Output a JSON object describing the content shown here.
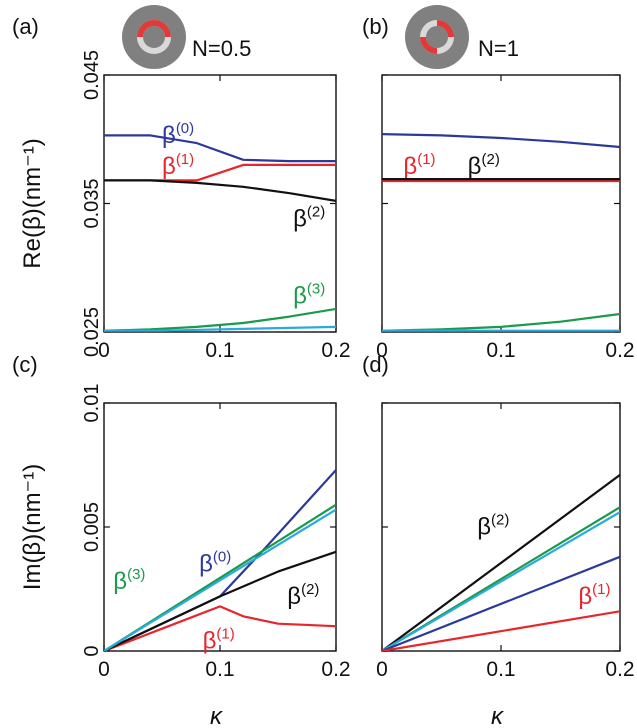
{
  "chart_data": [
    {
      "panel": "(a)",
      "type": "line",
      "title": "N=0.5",
      "ylabel": "Re(β)(nm⁻¹)",
      "xlabel": "",
      "xlim": [
        0,
        0.2
      ],
      "ylim": [
        0.025,
        0.045
      ],
      "xticks": [
        "0",
        "0.1",
        "0.2"
      ],
      "yticks": [
        "0.025",
        "0.035",
        "0.045"
      ],
      "inset_ring": {
        "outer": "#808080",
        "track": "#d9d9d9",
        "highlight": "#e03a3a",
        "arc": "top"
      },
      "series": [
        {
          "name": "β(0)",
          "label_main": "β",
          "label_sup": "(0)",
          "color": "#2b3a9a",
          "x": [
            0,
            0.04,
            0.08,
            0.12,
            0.16,
            0.2
          ],
          "y": [
            0.0403,
            0.0403,
            0.0397,
            0.0384,
            0.0383,
            0.0383
          ],
          "label_at": [
            0.05,
            0.0397
          ]
        },
        {
          "name": "β(1)",
          "label_main": "β",
          "label_sup": "(1)",
          "color": "#e8252a",
          "x": [
            0,
            0.04,
            0.08,
            0.12,
            0.16,
            0.2
          ],
          "y": [
            0.0368,
            0.0368,
            0.0368,
            0.038,
            0.038,
            0.038
          ],
          "label_at": [
            0.05,
            0.0373
          ]
        },
        {
          "name": "β(2)",
          "label_main": "β",
          "label_sup": "(2)",
          "color": "#111111",
          "x": [
            0,
            0.04,
            0.08,
            0.12,
            0.16,
            0.2
          ],
          "y": [
            0.0368,
            0.0368,
            0.0366,
            0.0363,
            0.0358,
            0.0352
          ],
          "label_at": [
            0.163,
            0.0332
          ]
        },
        {
          "name": "β(3)",
          "label_main": "β",
          "label_sup": "(3)",
          "color": "#1a9a4a",
          "x": [
            0,
            0.04,
            0.08,
            0.12,
            0.16,
            0.2
          ],
          "y": [
            0.0251,
            0.0252,
            0.0254,
            0.0257,
            0.0262,
            0.0268
          ],
          "label_at": [
            0.163,
            0.0272
          ]
        },
        {
          "name": "",
          "color": "#2aaae0",
          "x": [
            0,
            0.05,
            0.1,
            0.15,
            0.2
          ],
          "y": [
            0.0251,
            0.0251,
            0.0252,
            0.0253,
            0.0254
          ]
        }
      ]
    },
    {
      "panel": "(b)",
      "type": "line",
      "title": "N=1",
      "ylabel": "",
      "xlabel": "",
      "xlim": [
        0,
        0.2
      ],
      "ylim": [
        0.025,
        0.045
      ],
      "xticks": [
        "0",
        "0.1",
        "0.2"
      ],
      "yticks": [],
      "inset_ring": {
        "outer": "#808080",
        "track": "#d9d9d9",
        "highlight": "#e03a3a",
        "arc": "split"
      },
      "series": [
        {
          "name": "",
          "color": "#2b3a9a",
          "x": [
            0,
            0.05,
            0.1,
            0.15,
            0.2
          ],
          "y": [
            0.0404,
            0.0403,
            0.0401,
            0.0398,
            0.0394
          ]
        },
        {
          "name": "β(1)",
          "label_main": "β",
          "label_sup": "(1)",
          "color": "#e8252a",
          "x": [
            0,
            0.2
          ],
          "y": [
            0.03675,
            0.03675
          ],
          "label_at": [
            0.018,
            0.0373
          ]
        },
        {
          "name": "β(2)",
          "label_main": "β",
          "label_sup": "(2)",
          "color": "#111111",
          "x": [
            0,
            0.2
          ],
          "y": [
            0.0369,
            0.0369
          ],
          "label_at": [
            0.072,
            0.0373
          ]
        },
        {
          "name": "",
          "color": "#1a9a4a",
          "x": [
            0,
            0.05,
            0.1,
            0.15,
            0.2
          ],
          "y": [
            0.0251,
            0.0252,
            0.0254,
            0.0258,
            0.0264
          ]
        },
        {
          "name": "",
          "color": "#2aaae0",
          "x": [
            0,
            0.2
          ],
          "y": [
            0.0251,
            0.0251
          ]
        }
      ]
    },
    {
      "panel": "(c)",
      "type": "line",
      "title": "",
      "ylabel": "Im(β)(nm⁻¹)",
      "xlabel": "κ",
      "xlim": [
        0,
        0.2
      ],
      "ylim": [
        0,
        0.01
      ],
      "xticks": [
        "0",
        "0.1",
        "0.2"
      ],
      "yticks": [
        "0",
        "0.005",
        "0.01"
      ],
      "series": [
        {
          "name": "β(0)",
          "label_main": "β",
          "label_sup": "(0)",
          "color": "#2b3a9a",
          "x": [
            0,
            0.1,
            0.14,
            0.2
          ],
          "y": [
            0,
            0.0022,
            0.0042,
            0.0073
          ],
          "label_at": [
            0.082,
            0.0032
          ]
        },
        {
          "name": "β(1)",
          "label_main": "β",
          "label_sup": "(1)",
          "color": "#e8252a",
          "x": [
            0,
            0.05,
            0.1,
            0.12,
            0.15,
            0.2
          ],
          "y": [
            0,
            0.0009,
            0.0018,
            0.0014,
            0.0011,
            0.001
          ],
          "label_at": [
            0.085,
            0.0001
          ]
        },
        {
          "name": "β(2)",
          "label_main": "β",
          "label_sup": "(2)",
          "color": "#111111",
          "x": [
            0,
            0.1,
            0.15,
            0.2
          ],
          "y": [
            0,
            0.0022,
            0.0032,
            0.004
          ],
          "label_at": [
            0.158,
            0.0019
          ]
        },
        {
          "name": "β(3)",
          "label_main": "β",
          "label_sup": "(3)",
          "color": "#1a9a4a",
          "x": [
            0,
            0.2
          ],
          "y": [
            0,
            0.0059
          ],
          "label_at": [
            0.008,
            0.0025
          ]
        },
        {
          "name": "",
          "color": "#2aaae0",
          "x": [
            0,
            0.2
          ],
          "y": [
            0,
            0.0057
          ]
        }
      ]
    },
    {
      "panel": "(d)",
      "type": "line",
      "title": "",
      "ylabel": "",
      "xlabel": "κ",
      "xlim": [
        0,
        0.2
      ],
      "ylim": [
        0,
        0.01
      ],
      "xticks": [
        "0",
        "0.1",
        "0.2"
      ],
      "yticks": [],
      "series": [
        {
          "name": "β(2)",
          "label_main": "β",
          "label_sup": "(2)",
          "color": "#111111",
          "x": [
            0,
            0.2
          ],
          "y": [
            0,
            0.0071
          ],
          "label_at": [
            0.08,
            0.0047
          ]
        },
        {
          "name": "",
          "color": "#1a9a4a",
          "x": [
            0,
            0.2
          ],
          "y": [
            0,
            0.0058
          ]
        },
        {
          "name": "",
          "color": "#2aaae0",
          "x": [
            0,
            0.2
          ],
          "y": [
            0,
            0.0056
          ]
        },
        {
          "name": "",
          "color": "#2b3a9a",
          "x": [
            0,
            0.2
          ],
          "y": [
            0,
            0.0038
          ]
        },
        {
          "name": "β(1)",
          "label_main": "β",
          "label_sup": "(1)",
          "color": "#e8252a",
          "x": [
            0,
            0.2
          ],
          "y": [
            0,
            0.0016
          ],
          "label_at": [
            0.165,
            0.0019
          ]
        }
      ]
    }
  ]
}
